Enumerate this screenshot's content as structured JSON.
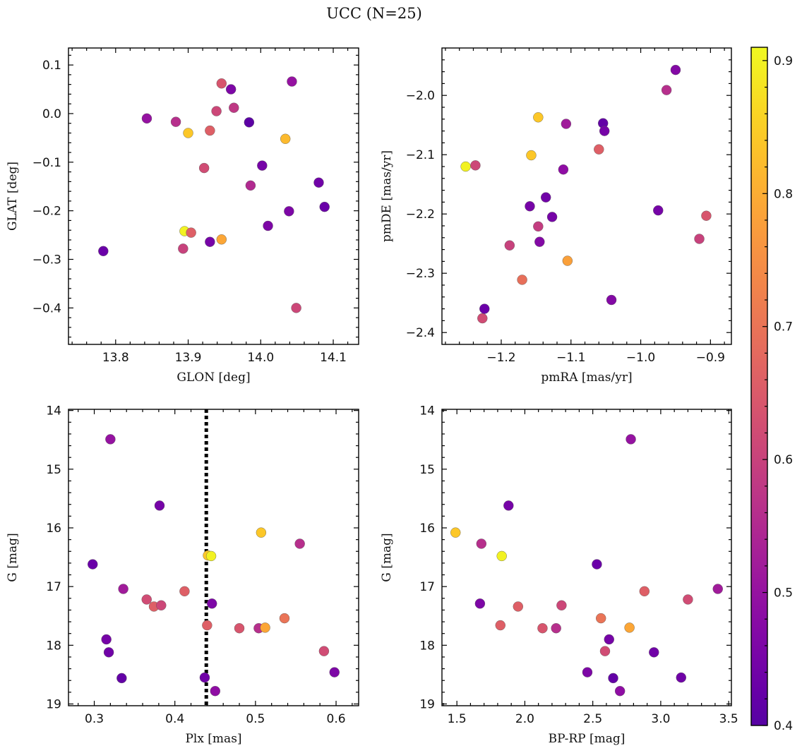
{
  "title": "UCC (N=25)",
  "colorbar": {
    "min": 0.4,
    "max": 0.91,
    "ticks": [
      "0.4",
      "0.5",
      "0.6",
      "0.7",
      "0.8",
      "0.9"
    ],
    "tick_values": [
      0.4,
      0.5,
      0.6,
      0.7,
      0.8,
      0.9
    ],
    "colormap": "plasma"
  },
  "chart_data": [
    {
      "type": "scatter",
      "xlabel": "GLON [deg]",
      "ylabel": "GLAT [deg]",
      "xlim": [
        13.735,
        14.135
      ],
      "ylim": [
        -0.475,
        0.135
      ],
      "xticks": [
        13.8,
        13.9,
        14.0,
        14.1
      ],
      "xticklabels": [
        "13.8",
        "13.9",
        "14.0",
        "14.1"
      ],
      "yticks": [
        0.1,
        0.0,
        -0.1,
        -0.2,
        -0.3,
        -0.4
      ],
      "yticklabels": [
        "0.1",
        "0.0",
        "−0.1",
        "−0.2",
        "−0.3",
        "−0.4"
      ],
      "points": [
        {
          "x": 13.783,
          "y": -0.283,
          "c": 0.43
        },
        {
          "x": 13.843,
          "y": -0.01,
          "c": 0.5
        },
        {
          "x": 13.883,
          "y": -0.017,
          "c": 0.56
        },
        {
          "x": 13.893,
          "y": -0.278,
          "c": 0.6
        },
        {
          "x": 13.895,
          "y": -0.242,
          "c": 0.9
        },
        {
          "x": 13.9,
          "y": -0.04,
          "c": 0.84
        },
        {
          "x": 13.904,
          "y": -0.245,
          "c": 0.66
        },
        {
          "x": 13.922,
          "y": -0.112,
          "c": 0.62
        },
        {
          "x": 13.93,
          "y": -0.035,
          "c": 0.66
        },
        {
          "x": 13.93,
          "y": -0.264,
          "c": 0.45
        },
        {
          "x": 13.939,
          "y": 0.005,
          "c": 0.61
        },
        {
          "x": 13.946,
          "y": 0.062,
          "c": 0.64
        },
        {
          "x": 13.946,
          "y": -0.259,
          "c": 0.79
        },
        {
          "x": 13.959,
          "y": 0.05,
          "c": 0.46
        },
        {
          "x": 13.963,
          "y": 0.012,
          "c": 0.58
        },
        {
          "x": 13.984,
          "y": -0.018,
          "c": 0.41
        },
        {
          "x": 13.986,
          "y": -0.148,
          "c": 0.55
        },
        {
          "x": 14.002,
          "y": -0.107,
          "c": 0.45
        },
        {
          "x": 14.01,
          "y": -0.231,
          "c": 0.46
        },
        {
          "x": 14.034,
          "y": -0.052,
          "c": 0.82
        },
        {
          "x": 14.039,
          "y": -0.201,
          "c": 0.46
        },
        {
          "x": 14.043,
          "y": 0.066,
          "c": 0.5
        },
        {
          "x": 14.049,
          "y": -0.4,
          "c": 0.61
        },
        {
          "x": 14.08,
          "y": -0.142,
          "c": 0.44
        },
        {
          "x": 14.088,
          "y": -0.192,
          "c": 0.43
        }
      ]
    },
    {
      "type": "scatter",
      "xlabel": "pmRA [mas/yr]",
      "ylabel": "pmDE [mas/yr]",
      "xlim": [
        -1.285,
        -0.87
      ],
      "ylim": [
        -2.42,
        -1.92
      ],
      "xticks": [
        -1.2,
        -1.1,
        -1.0,
        -0.9
      ],
      "xticklabels": [
        "−1.2",
        "−1.1",
        "−1.0",
        "−0.9"
      ],
      "yticks": [
        -2.0,
        -2.1,
        -2.2,
        -2.3,
        -2.4
      ],
      "yticklabels": [
        "−2.0",
        "−2.1",
        "−2.2",
        "−2.3",
        "−2.4"
      ],
      "points": [
        {
          "x": -1.251,
          "y": -2.12,
          "c": 0.9
        },
        {
          "x": -1.237,
          "y": -2.118,
          "c": 0.61
        },
        {
          "x": -1.227,
          "y": -2.376,
          "c": 0.62
        },
        {
          "x": -1.224,
          "y": -2.36,
          "c": 0.43
        },
        {
          "x": -1.188,
          "y": -2.253,
          "c": 0.6
        },
        {
          "x": -1.17,
          "y": -2.311,
          "c": 0.69
        },
        {
          "x": -1.159,
          "y": -2.187,
          "c": 0.45
        },
        {
          "x": -1.157,
          "y": -2.101,
          "c": 0.84
        },
        {
          "x": -1.147,
          "y": -2.037,
          "c": 0.84
        },
        {
          "x": -1.147,
          "y": -2.221,
          "c": 0.59
        },
        {
          "x": -1.145,
          "y": -2.247,
          "c": 0.47
        },
        {
          "x": -1.136,
          "y": -2.172,
          "c": 0.44
        },
        {
          "x": -1.127,
          "y": -2.205,
          "c": 0.45
        },
        {
          "x": -1.111,
          "y": -2.125,
          "c": 0.49
        },
        {
          "x": -1.107,
          "y": -2.048,
          "c": 0.52
        },
        {
          "x": -1.105,
          "y": -2.279,
          "c": 0.78
        },
        {
          "x": -1.06,
          "y": -2.091,
          "c": 0.66
        },
        {
          "x": -1.054,
          "y": -2.047,
          "c": 0.42
        },
        {
          "x": -1.052,
          "y": -2.06,
          "c": 0.45
        },
        {
          "x": -1.042,
          "y": -2.345,
          "c": 0.47
        },
        {
          "x": -0.975,
          "y": -2.194,
          "c": 0.45
        },
        {
          "x": -0.963,
          "y": -1.991,
          "c": 0.56
        },
        {
          "x": -0.95,
          "y": -1.957,
          "c": 0.47
        },
        {
          "x": -0.916,
          "y": -2.242,
          "c": 0.6
        },
        {
          "x": -0.906,
          "y": -2.203,
          "c": 0.64
        }
      ]
    },
    {
      "type": "scatter",
      "xlabel": "Plx [mas]",
      "ylabel": "G [mag]",
      "xlim": [
        0.268,
        0.628
      ],
      "ylim": [
        19.03,
        13.98
      ],
      "vline": 0.439,
      "xticks": [
        0.3,
        0.4,
        0.5,
        0.6
      ],
      "xticklabels": [
        "0.3",
        "0.4",
        "0.5",
        "0.6"
      ],
      "yticks": [
        14,
        15,
        16,
        17,
        18,
        19
      ],
      "yticklabels": [
        "14",
        "15",
        "16",
        "17",
        "18",
        "19"
      ],
      "points": [
        {
          "x": 0.298,
          "y": 16.62,
          "c": 0.43
        },
        {
          "x": 0.315,
          "y": 17.9,
          "c": 0.45
        },
        {
          "x": 0.318,
          "y": 18.12,
          "c": 0.44
        },
        {
          "x": 0.32,
          "y": 14.49,
          "c": 0.5
        },
        {
          "x": 0.334,
          "y": 18.56,
          "c": 0.42
        },
        {
          "x": 0.336,
          "y": 17.04,
          "c": 0.52
        },
        {
          "x": 0.365,
          "y": 17.22,
          "c": 0.62
        },
        {
          "x": 0.374,
          "y": 17.34,
          "c": 0.66
        },
        {
          "x": 0.381,
          "y": 15.62,
          "c": 0.45
        },
        {
          "x": 0.383,
          "y": 17.32,
          "c": 0.61
        },
        {
          "x": 0.412,
          "y": 17.08,
          "c": 0.66
        },
        {
          "x": 0.437,
          "y": 18.55,
          "c": 0.44
        },
        {
          "x": 0.44,
          "y": 17.66,
          "c": 0.66
        },
        {
          "x": 0.441,
          "y": 16.47,
          "c": 0.84
        },
        {
          "x": 0.445,
          "y": 16.48,
          "c": 0.9
        },
        {
          "x": 0.446,
          "y": 17.29,
          "c": 0.46
        },
        {
          "x": 0.45,
          "y": 18.78,
          "c": 0.49
        },
        {
          "x": 0.48,
          "y": 17.71,
          "c": 0.64
        },
        {
          "x": 0.504,
          "y": 17.71,
          "c": 0.56
        },
        {
          "x": 0.507,
          "y": 16.08,
          "c": 0.84
        },
        {
          "x": 0.512,
          "y": 17.7,
          "c": 0.79
        },
        {
          "x": 0.536,
          "y": 17.54,
          "c": 0.7
        },
        {
          "x": 0.555,
          "y": 16.27,
          "c": 0.56
        },
        {
          "x": 0.585,
          "y": 18.1,
          "c": 0.62
        },
        {
          "x": 0.598,
          "y": 18.46,
          "c": 0.46
        }
      ]
    },
    {
      "type": "scatter",
      "xlabel": "BP-RP [mag]",
      "ylabel": "G [mag]",
      "xlim": [
        1.39,
        3.52
      ],
      "ylim": [
        19.03,
        13.98
      ],
      "xticks": [
        1.5,
        2.0,
        2.5,
        3.0,
        3.5
      ],
      "xticklabels": [
        "1.5",
        "2.0",
        "2.5",
        "3.0",
        "3.5"
      ],
      "yticks": [
        14,
        15,
        16,
        17,
        18,
        19
      ],
      "yticklabels": [
        "14",
        "15",
        "16",
        "17",
        "18",
        "19"
      ],
      "points": [
        {
          "x": 1.49,
          "y": 16.08,
          "c": 0.84
        },
        {
          "x": 1.67,
          "y": 17.29,
          "c": 0.46
        },
        {
          "x": 1.68,
          "y": 16.27,
          "c": 0.56
        },
        {
          "x": 1.82,
          "y": 17.66,
          "c": 0.66
        },
        {
          "x": 1.83,
          "y": 16.48,
          "c": 0.9
        },
        {
          "x": 1.88,
          "y": 15.62,
          "c": 0.45
        },
        {
          "x": 1.95,
          "y": 17.34,
          "c": 0.66
        },
        {
          "x": 2.13,
          "y": 17.71,
          "c": 0.64
        },
        {
          "x": 2.23,
          "y": 17.71,
          "c": 0.56
        },
        {
          "x": 2.27,
          "y": 17.32,
          "c": 0.61
        },
        {
          "x": 2.46,
          "y": 18.46,
          "c": 0.46
        },
        {
          "x": 2.53,
          "y": 16.62,
          "c": 0.43
        },
        {
          "x": 2.56,
          "y": 17.54,
          "c": 0.7
        },
        {
          "x": 2.59,
          "y": 18.1,
          "c": 0.62
        },
        {
          "x": 2.62,
          "y": 17.9,
          "c": 0.45
        },
        {
          "x": 2.65,
          "y": 18.56,
          "c": 0.42
        },
        {
          "x": 2.7,
          "y": 18.78,
          "c": 0.49
        },
        {
          "x": 2.77,
          "y": 17.7,
          "c": 0.79
        },
        {
          "x": 2.78,
          "y": 14.49,
          "c": 0.5
        },
        {
          "x": 2.88,
          "y": 17.08,
          "c": 0.66
        },
        {
          "x": 2.95,
          "y": 18.12,
          "c": 0.44
        },
        {
          "x": 3.15,
          "y": 18.55,
          "c": 0.44
        },
        {
          "x": 3.2,
          "y": 17.22,
          "c": 0.62
        },
        {
          "x": 3.42,
          "y": 17.04,
          "c": 0.52
        }
      ]
    }
  ]
}
